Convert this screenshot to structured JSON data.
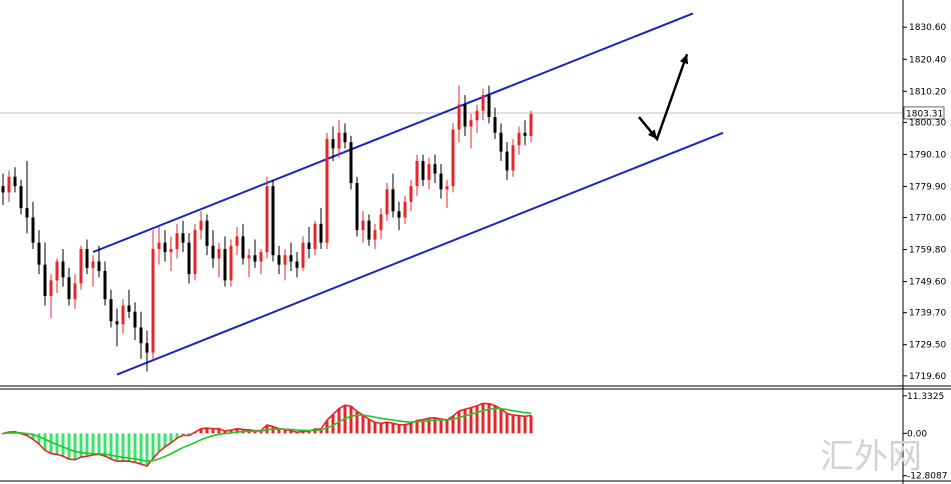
{
  "watermark": "汇外网",
  "chart_data": [
    {
      "type": "candlestick",
      "current_price": 1803.31,
      "ylim": [
        1717.0,
        1838.0
      ],
      "y_tick_labels": [
        "1830.60",
        "1820.40",
        "1810.20",
        "1800.30",
        "1790.10",
        "1779.90",
        "1770.00",
        "1759.80",
        "1749.60",
        "1739.70",
        "1729.50",
        "1719.60"
      ],
      "colors": {
        "up": "#e8252a",
        "down": "#000000",
        "channel": "#1b24c7",
        "arrow": "#000000",
        "price_line": "#c0c0c0"
      },
      "channel": {
        "upper": [
          {
            "bar": 15,
            "price": 1759.0
          },
          {
            "bar": 115,
            "price": 1835.0
          }
        ],
        "lower": [
          {
            "bar": 19,
            "price": 1720.0
          },
          {
            "bar": 120,
            "price": 1797.0
          }
        ]
      },
      "forecast_arrow": [
        {
          "bar": 106,
          "price": 1802.0
        },
        {
          "bar": 109,
          "price": 1795.0
        },
        {
          "bar": 114,
          "price": 1822.0
        }
      ],
      "ohlc": [
        [
          1780,
          1784,
          1774,
          1778
        ],
        [
          1778,
          1785,
          1775,
          1783
        ],
        [
          1783,
          1786,
          1778,
          1780
        ],
        [
          1780,
          1782,
          1771,
          1773
        ],
        [
          1773,
          1788,
          1765,
          1770
        ],
        [
          1770,
          1775,
          1760,
          1762
        ],
        [
          1762,
          1766,
          1752,
          1755
        ],
        [
          1755,
          1762,
          1742,
          1745
        ],
        [
          1745,
          1752,
          1738,
          1750
        ],
        [
          1750,
          1757,
          1746,
          1756
        ],
        [
          1756,
          1760,
          1748,
          1751
        ],
        [
          1751,
          1754,
          1742,
          1744
        ],
        [
          1744,
          1752,
          1741,
          1749
        ],
        [
          1749,
          1761,
          1747,
          1760
        ],
        [
          1760,
          1763,
          1752,
          1754
        ],
        [
          1754,
          1758,
          1748,
          1756
        ],
        [
          1756,
          1761,
          1751,
          1753
        ],
        [
          1753,
          1756,
          1742,
          1744
        ],
        [
          1744,
          1747,
          1735,
          1737
        ],
        [
          1737,
          1741,
          1729,
          1736
        ],
        [
          1736,
          1744,
          1733,
          1742
        ],
        [
          1742,
          1747,
          1738,
          1740
        ],
        [
          1740,
          1743,
          1731,
          1735
        ],
        [
          1735,
          1740,
          1725,
          1730
        ],
        [
          1730,
          1734,
          1721,
          1727
        ],
        [
          1727,
          1766,
          1725,
          1760
        ],
        [
          1760,
          1767,
          1755,
          1762
        ],
        [
          1762,
          1766,
          1756,
          1759
        ],
        [
          1759,
          1764,
          1753,
          1760
        ],
        [
          1760,
          1768,
          1757,
          1765
        ],
        [
          1765,
          1769,
          1759,
          1762
        ],
        [
          1762,
          1765,
          1749,
          1752
        ],
        [
          1752,
          1768,
          1750,
          1766
        ],
        [
          1766,
          1772,
          1763,
          1769
        ],
        [
          1769,
          1771,
          1758,
          1761
        ],
        [
          1761,
          1766,
          1754,
          1757
        ],
        [
          1757,
          1762,
          1751,
          1760
        ],
        [
          1760,
          1764,
          1748,
          1750
        ],
        [
          1750,
          1763,
          1748,
          1761
        ],
        [
          1761,
          1767,
          1758,
          1764
        ],
        [
          1764,
          1768,
          1755,
          1757
        ],
        [
          1757,
          1760,
          1751,
          1758
        ],
        [
          1758,
          1763,
          1754,
          1756
        ],
        [
          1756,
          1760,
          1752,
          1759
        ],
        [
          1759,
          1783,
          1757,
          1780
        ],
        [
          1780,
          1782,
          1756,
          1758
        ],
        [
          1758,
          1761,
          1752,
          1755
        ],
        [
          1755,
          1760,
          1750,
          1758
        ],
        [
          1758,
          1762,
          1753,
          1756
        ],
        [
          1756,
          1759,
          1751,
          1754
        ],
        [
          1754,
          1764,
          1753,
          1762
        ],
        [
          1762,
          1767,
          1757,
          1760
        ],
        [
          1760,
          1769,
          1758,
          1768
        ],
        [
          1768,
          1773,
          1760,
          1762
        ],
        [
          1762,
          1797,
          1760,
          1795
        ],
        [
          1795,
          1799,
          1788,
          1792
        ],
        [
          1792,
          1801,
          1789,
          1797
        ],
        [
          1797,
          1800,
          1792,
          1794
        ],
        [
          1794,
          1796,
          1779,
          1781
        ],
        [
          1781,
          1783,
          1764,
          1766
        ],
        [
          1766,
          1772,
          1762,
          1769
        ],
        [
          1769,
          1771,
          1761,
          1763
        ],
        [
          1763,
          1768,
          1760,
          1766
        ],
        [
          1766,
          1773,
          1763,
          1771
        ],
        [
          1771,
          1781,
          1769,
          1779
        ],
        [
          1779,
          1784,
          1770,
          1772
        ],
        [
          1772,
          1775,
          1766,
          1770
        ],
        [
          1770,
          1777,
          1768,
          1775
        ],
        [
          1775,
          1782,
          1772,
          1780
        ],
        [
          1780,
          1790,
          1777,
          1788
        ],
        [
          1788,
          1790,
          1780,
          1782
        ],
        [
          1782,
          1789,
          1779,
          1787
        ],
        [
          1787,
          1790,
          1781,
          1784
        ],
        [
          1784,
          1787,
          1776,
          1779
        ],
        [
          1779,
          1782,
          1773,
          1780
        ],
        [
          1780,
          1800,
          1778,
          1798
        ],
        [
          1798,
          1812,
          1794,
          1806
        ],
        [
          1806,
          1809,
          1796,
          1799
        ],
        [
          1799,
          1803,
          1792,
          1801
        ],
        [
          1801,
          1806,
          1797,
          1804
        ],
        [
          1804,
          1811,
          1801,
          1809
        ],
        [
          1809,
          1812,
          1800,
          1802
        ],
        [
          1802,
          1805,
          1795,
          1797
        ],
        [
          1797,
          1800,
          1788,
          1791
        ],
        [
          1791,
          1794,
          1782,
          1785
        ],
        [
          1785,
          1795,
          1783,
          1793
        ],
        [
          1793,
          1799,
          1790,
          1797
        ],
        [
          1797,
          1801,
          1793,
          1796
        ],
        [
          1796,
          1804,
          1794,
          1803
        ]
      ],
      "macd": {
        "ylim": [
          -13.5,
          12.5
        ],
        "tick_labels": [
          "11.3325",
          "0.00",
          "-12.8087"
        ],
        "colors": {
          "pos": "#e8252a",
          "neg": "#39e56b",
          "main": "#e8252a",
          "signal": "#21c62a"
        }
      }
    }
  ]
}
